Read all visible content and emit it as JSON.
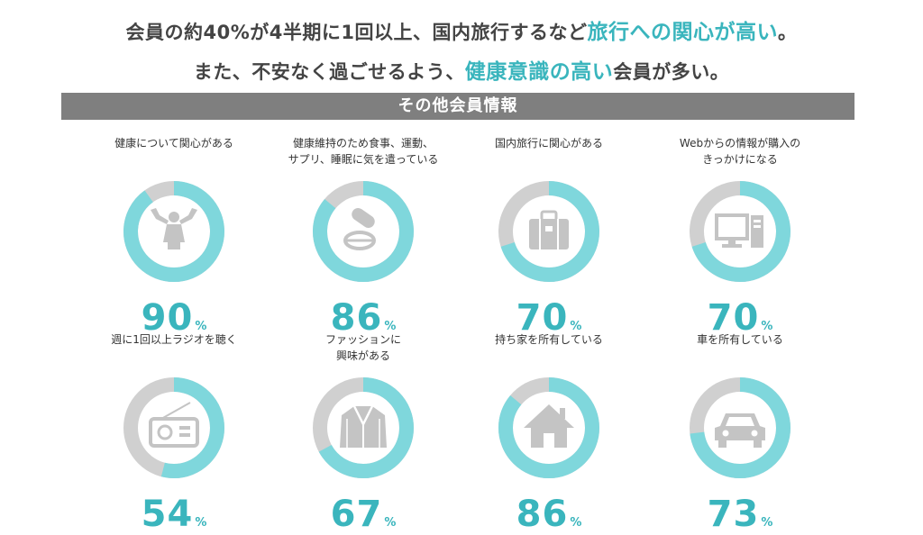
{
  "headline": {
    "line1_pre": "会員の約40%が4半期に1回以上、国内旅行するなど",
    "line1_strong": "旅行への関心が高い",
    "line1_post": "。",
    "line2_pre": "また、不安なく過ごせるよう、",
    "line2_strong": "健康意識の高い",
    "line2_post": "会員が多い。"
  },
  "section_title": "その他会員情報",
  "colors": {
    "accent": "#7fd7dc",
    "remainder": "#d0d0d0",
    "icon": "#c4c4c4",
    "text_accent": "#3ab5bd"
  },
  "chart_data": {
    "type": "pie",
    "unit": "%",
    "items": [
      {
        "label": "健康について関心がある",
        "value": 90,
        "icon": "muscle-icon"
      },
      {
        "label": "健康維持のため食事、運動、\nサプリ、睡眠に気を遣っている",
        "value": 86,
        "icon": "pills-icon"
      },
      {
        "label": "国内旅行に関心がある",
        "value": 70,
        "icon": "suitcase-icon"
      },
      {
        "label": "Webからの情報が購入の\nきっかけになる",
        "value": 70,
        "icon": "computer-icon"
      },
      {
        "label": "週に1回以上ラジオを聴く",
        "value": 54,
        "icon": "radio-icon"
      },
      {
        "label": "ファッションに\n興味がある",
        "value": 67,
        "icon": "jacket-icon"
      },
      {
        "label": "持ち家を所有している",
        "value": 86,
        "icon": "house-icon"
      },
      {
        "label": "車を所有している",
        "value": 73,
        "icon": "car-icon"
      }
    ]
  }
}
